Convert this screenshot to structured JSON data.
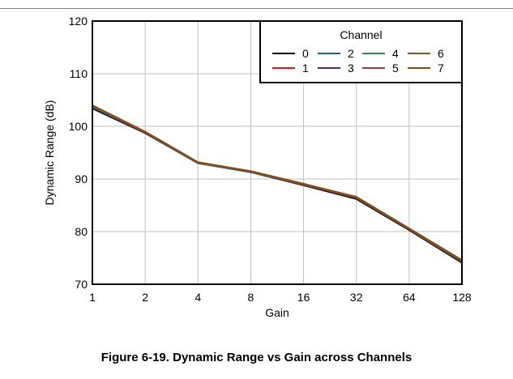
{
  "figure": {
    "caption": "Figure 6-19. Dynamic Range vs Gain across Channels"
  },
  "chart_data": {
    "type": "line",
    "title": "",
    "xlabel": "Gain",
    "ylabel": "Dynamic Range (dB)",
    "categories": [
      "1",
      "2",
      "4",
      "8",
      "16",
      "32",
      "64",
      "128"
    ],
    "x_scale": "log2",
    "ylim": [
      70,
      120
    ],
    "yticks": [
      70,
      80,
      90,
      100,
      110,
      120
    ],
    "grid": true,
    "legend": {
      "title": "Channel",
      "placement": "top-right"
    },
    "series": [
      {
        "name": "0",
        "color": "#000000",
        "values": [
          103.4,
          98.7,
          93.0,
          91.3,
          88.8,
          86.2,
          80.3,
          74.1
        ]
      },
      {
        "name": "1",
        "color": "#e8141c",
        "values": [
          103.8,
          98.9,
          93.1,
          91.4,
          89.0,
          86.5,
          80.5,
          74.4
        ]
      },
      {
        "name": "2",
        "color": "#1f5f9f",
        "values": [
          103.6,
          98.8,
          93.0,
          91.3,
          88.9,
          86.4,
          80.4,
          74.3
        ]
      },
      {
        "name": "3",
        "color": "#4b2a7a",
        "values": [
          103.7,
          98.8,
          93.1,
          91.4,
          88.9,
          86.4,
          80.4,
          74.3
        ]
      },
      {
        "name": "4",
        "color": "#2e8b4f",
        "values": [
          103.8,
          98.9,
          93.1,
          91.4,
          89.0,
          86.5,
          80.5,
          74.4
        ]
      },
      {
        "name": "5",
        "color": "#9c3b3b",
        "values": [
          103.9,
          98.9,
          93.1,
          91.5,
          89.0,
          86.6,
          80.6,
          74.5
        ]
      },
      {
        "name": "6",
        "color": "#7a5a1e",
        "values": [
          103.9,
          98.9,
          93.1,
          91.4,
          89.0,
          86.5,
          80.5,
          74.5
        ]
      },
      {
        "name": "7",
        "color": "#8a4b12",
        "values": [
          104.0,
          99.0,
          93.2,
          91.5,
          89.1,
          86.6,
          80.6,
          74.6
        ]
      }
    ]
  }
}
